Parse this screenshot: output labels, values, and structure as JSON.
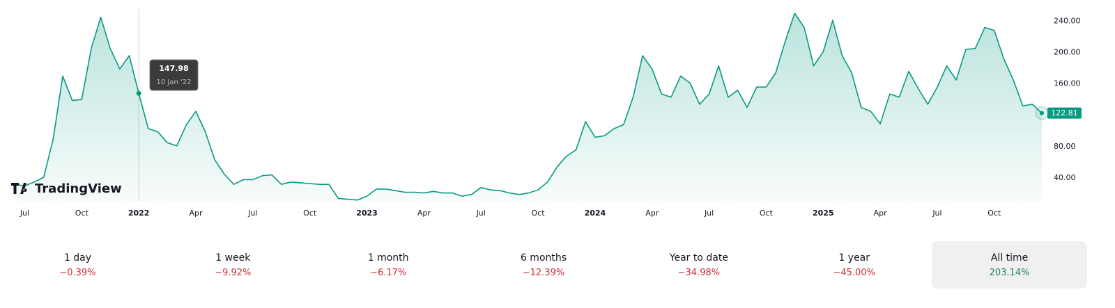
{
  "chart_data": {
    "type": "area",
    "watermark": "TradingView",
    "series": [
      {
        "color": "#089981",
        "values": [
          32,
          30,
          35,
          41,
          90,
          170,
          139,
          140,
          205,
          245,
          205,
          179,
          196,
          147.98,
          103,
          99,
          85,
          81,
          108,
          125,
          99,
          63,
          45,
          32,
          38,
          38,
          43,
          44,
          32,
          35,
          34,
          33,
          32,
          32,
          14,
          13,
          12,
          17,
          26,
          26,
          24,
          22,
          22,
          21,
          23,
          21,
          21,
          17,
          19,
          28,
          25,
          24,
          21,
          19,
          21,
          25,
          35,
          54,
          68,
          76,
          112,
          92,
          94,
          103,
          108,
          143,
          196,
          179,
          147,
          143,
          170,
          161,
          134,
          147,
          183,
          143,
          152,
          130,
          156,
          156,
          174,
          214,
          250,
          232,
          183,
          201,
          241,
          196,
          174,
          130,
          125,
          109,
          147,
          143,
          176,
          154,
          134,
          156,
          183,
          165,
          204,
          205,
          232,
          228,
          192,
          165,
          132,
          134,
          122.81
        ]
      }
    ],
    "tooltip": {
      "date": "10 Jan '22"
    },
    "xlim": [
      -0.5,
      108
    ],
    "xticks": [
      {
        "value": 1,
        "label": "Jul"
      },
      {
        "value": 7,
        "label": "Oct"
      },
      {
        "value": 13,
        "label": "2022"
      },
      {
        "value": 19,
        "label": "Apr"
      },
      {
        "value": 25,
        "label": "Jul"
      },
      {
        "value": 31,
        "label": "Oct"
      },
      {
        "value": 37,
        "label": "2023"
      },
      {
        "value": 43,
        "label": "Apr"
      },
      {
        "value": 49,
        "label": "Jul"
      },
      {
        "value": 55,
        "label": "Oct"
      },
      {
        "value": 61,
        "label": "2024"
      },
      {
        "value": 67,
        "label": "Apr"
      },
      {
        "value": 73,
        "label": "Jul"
      },
      {
        "value": 79,
        "label": "Oct"
      },
      {
        "value": 85,
        "label": "2025"
      },
      {
        "value": 91,
        "label": "Apr"
      },
      {
        "value": 97,
        "label": "Jul"
      },
      {
        "value": 103,
        "label": "Oct"
      }
    ],
    "ylim": [
      10,
      258
    ],
    "yticks": [
      {
        "value": 40,
        "label": "40.00"
      },
      {
        "value": 80,
        "label": "80.00"
      },
      {
        "value": 160,
        "label": "160.00"
      },
      {
        "value": 200,
        "label": "200.00"
      },
      {
        "value": 240,
        "label": "240.00"
      }
    ],
    "periods": [
      {
        "label": "1 day",
        "change": -0.39,
        "change_label": "−0.39%"
      },
      {
        "label": "1 week",
        "change": -9.92,
        "change_label": "−9.92%"
      },
      {
        "label": "1 month",
        "change": -6.17,
        "change_label": "−6.17%"
      },
      {
        "label": "6 months",
        "change": -12.39,
        "change_label": "−12.39%"
      },
      {
        "label": "Year to date",
        "change": -34.98,
        "change_label": "−34.98%"
      },
      {
        "label": "1 year",
        "change": -45.0,
        "change_label": "−45.00%"
      },
      {
        "label": "All time",
        "change": 203.14,
        "change_label": "203.14%",
        "selected": true
      }
    ]
  }
}
